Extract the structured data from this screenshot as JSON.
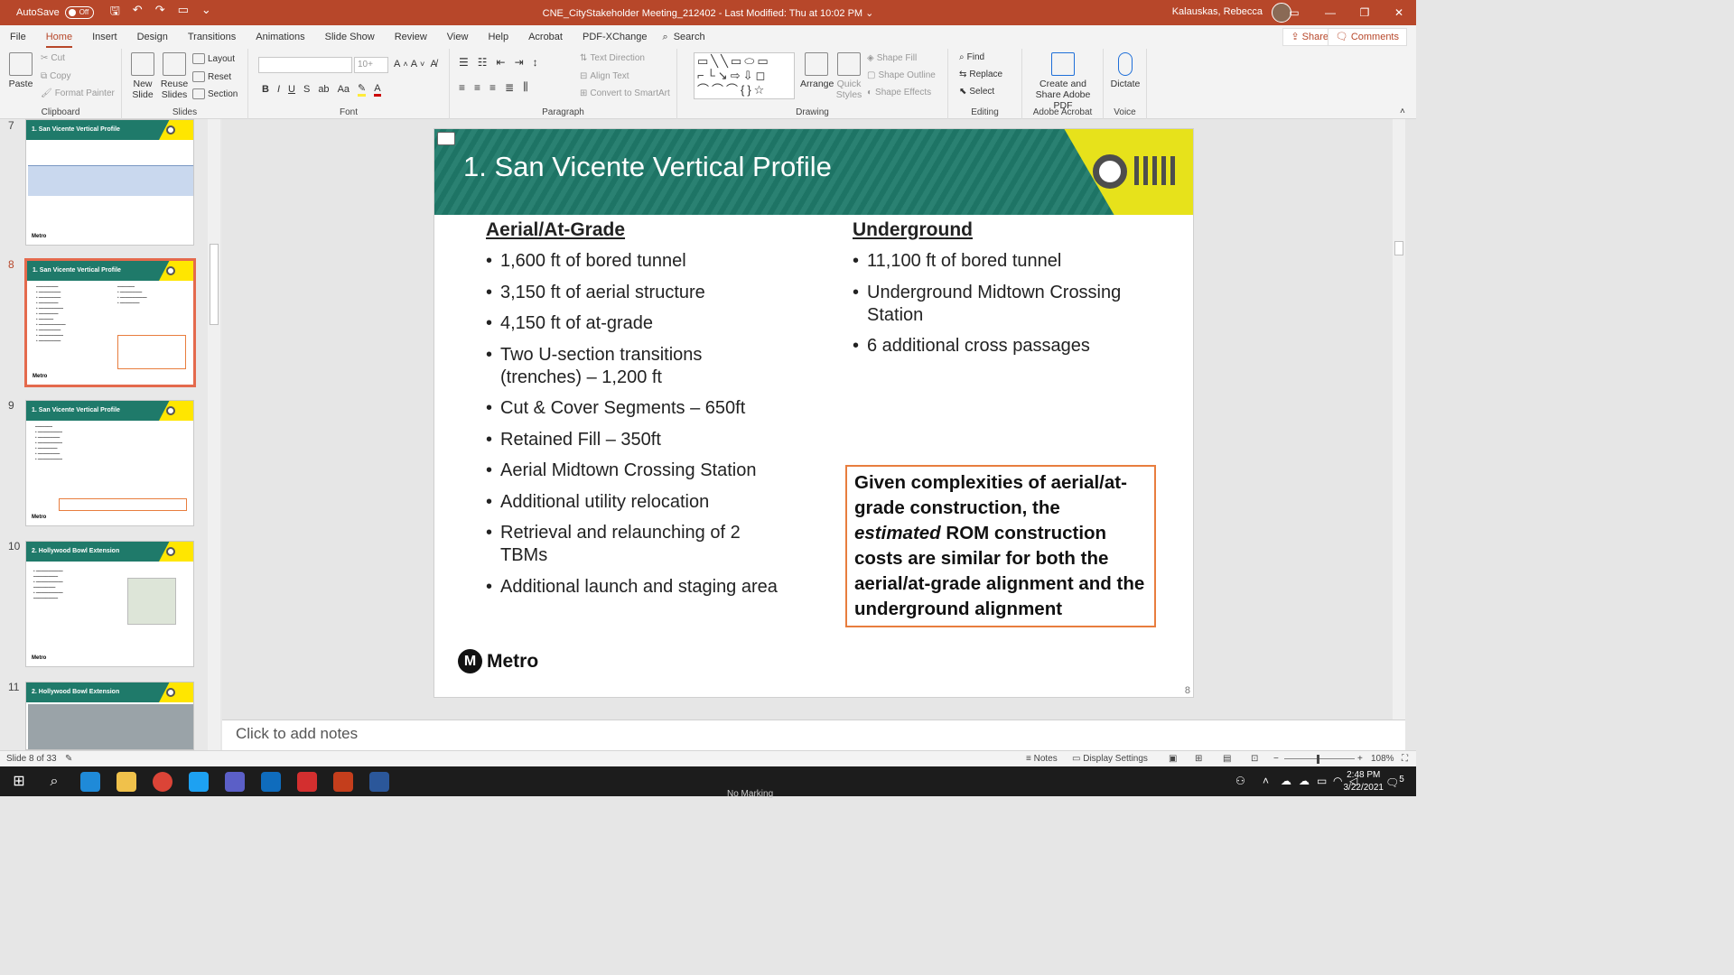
{
  "window": {
    "autosave_label": "AutoSave",
    "autosave_state": "Off",
    "doc_title": "CNE_CityStakeholder Meeting_212402  -  Last Modified: Thu at 10:02 PM  ⌄",
    "user_name": "Kalauskas, Rebecca",
    "minimize": "—",
    "restore": "❐",
    "close": "✕"
  },
  "tabs": [
    "File",
    "Home",
    "Insert",
    "Design",
    "Transitions",
    "Animations",
    "Slide Show",
    "Review",
    "View",
    "Help",
    "Acrobat",
    "PDF-XChange"
  ],
  "active_tab": "Home",
  "search_label": "Search",
  "share_label": "Share",
  "comments_label": "Comments",
  "ribbon": {
    "clipboard": {
      "label": "Clipboard",
      "paste": "Paste",
      "cut": "Cut",
      "copy": "Copy",
      "format_painter": "Format Painter"
    },
    "slides": {
      "label": "Slides",
      "new_slide": "New Slide",
      "reuse_slides": "Reuse Slides",
      "layout": "Layout",
      "reset": "Reset",
      "section": "Section"
    },
    "font": {
      "label": "Font",
      "size": "10+"
    },
    "paragraph": {
      "label": "Paragraph",
      "text_direction": "Text Direction",
      "align_text": "Align Text",
      "convert_smartart": "Convert to SmartArt"
    },
    "drawing": {
      "label": "Drawing",
      "arrange": "Arrange",
      "quick_styles": "Quick Styles",
      "shape_fill": "Shape Fill",
      "shape_outline": "Shape Outline",
      "shape_effects": "Shape Effects"
    },
    "editing": {
      "label": "Editing",
      "find": "Find",
      "replace": "Replace",
      "select": "Select"
    },
    "acrobat": {
      "label": "Adobe Acrobat",
      "create_share": "Create and Share Adobe PDF"
    },
    "voice": {
      "label": "Voice",
      "dictate": "Dictate"
    }
  },
  "thumbnails": [
    {
      "num": "7",
      "title": "1. San Vicente Vertical Profile"
    },
    {
      "num": "8",
      "title": "1. San Vicente Vertical Profile"
    },
    {
      "num": "9",
      "title": "1. San Vicente Vertical Profile"
    },
    {
      "num": "10",
      "title": "2. Hollywood Bowl Extension"
    },
    {
      "num": "11",
      "title": "2. Hollywood Bowl Extension"
    }
  ],
  "thumb_logo": "Metro",
  "slide": {
    "title": "1. San Vicente Vertical Profile",
    "left_heading": "Aerial/At-Grade",
    "left_items": [
      "1,600 ft of bored tunnel",
      "3,150 ft of aerial structure",
      "4,150 ft of at-grade",
      "Two U-section transitions (trenches) – 1,200 ft",
      "Cut & Cover Segments – 650ft",
      "Retained Fill – 350ft",
      "Aerial Midtown Crossing Station",
      "Additional utility relocation",
      "Retrieval and relaunching of 2 TBMs",
      "Additional launch and staging area"
    ],
    "right_heading": "Underground",
    "right_items": [
      "11,100 ft of bored tunnel",
      "Underground Midtown Crossing Station",
      "6 additional cross passages"
    ],
    "callout_part1": "Given complexities of aerial/at-grade construction, the ",
    "callout_em": "estimated",
    "callout_part2": " ROM construction costs are similar for both the aerial/at-grade alignment and the underground alignment",
    "logo_text": "Metro",
    "slide_number": "8"
  },
  "notes_placeholder": "Click to add notes",
  "status": {
    "slide_info": "Slide 8 of 33",
    "notes": "Notes",
    "display_settings": "Display Settings",
    "zoom": "108%"
  },
  "taskbar": {
    "time": "2:48 PM",
    "date": "3/22/2021",
    "no_marking": "No Marking",
    "notif_count": "5"
  }
}
